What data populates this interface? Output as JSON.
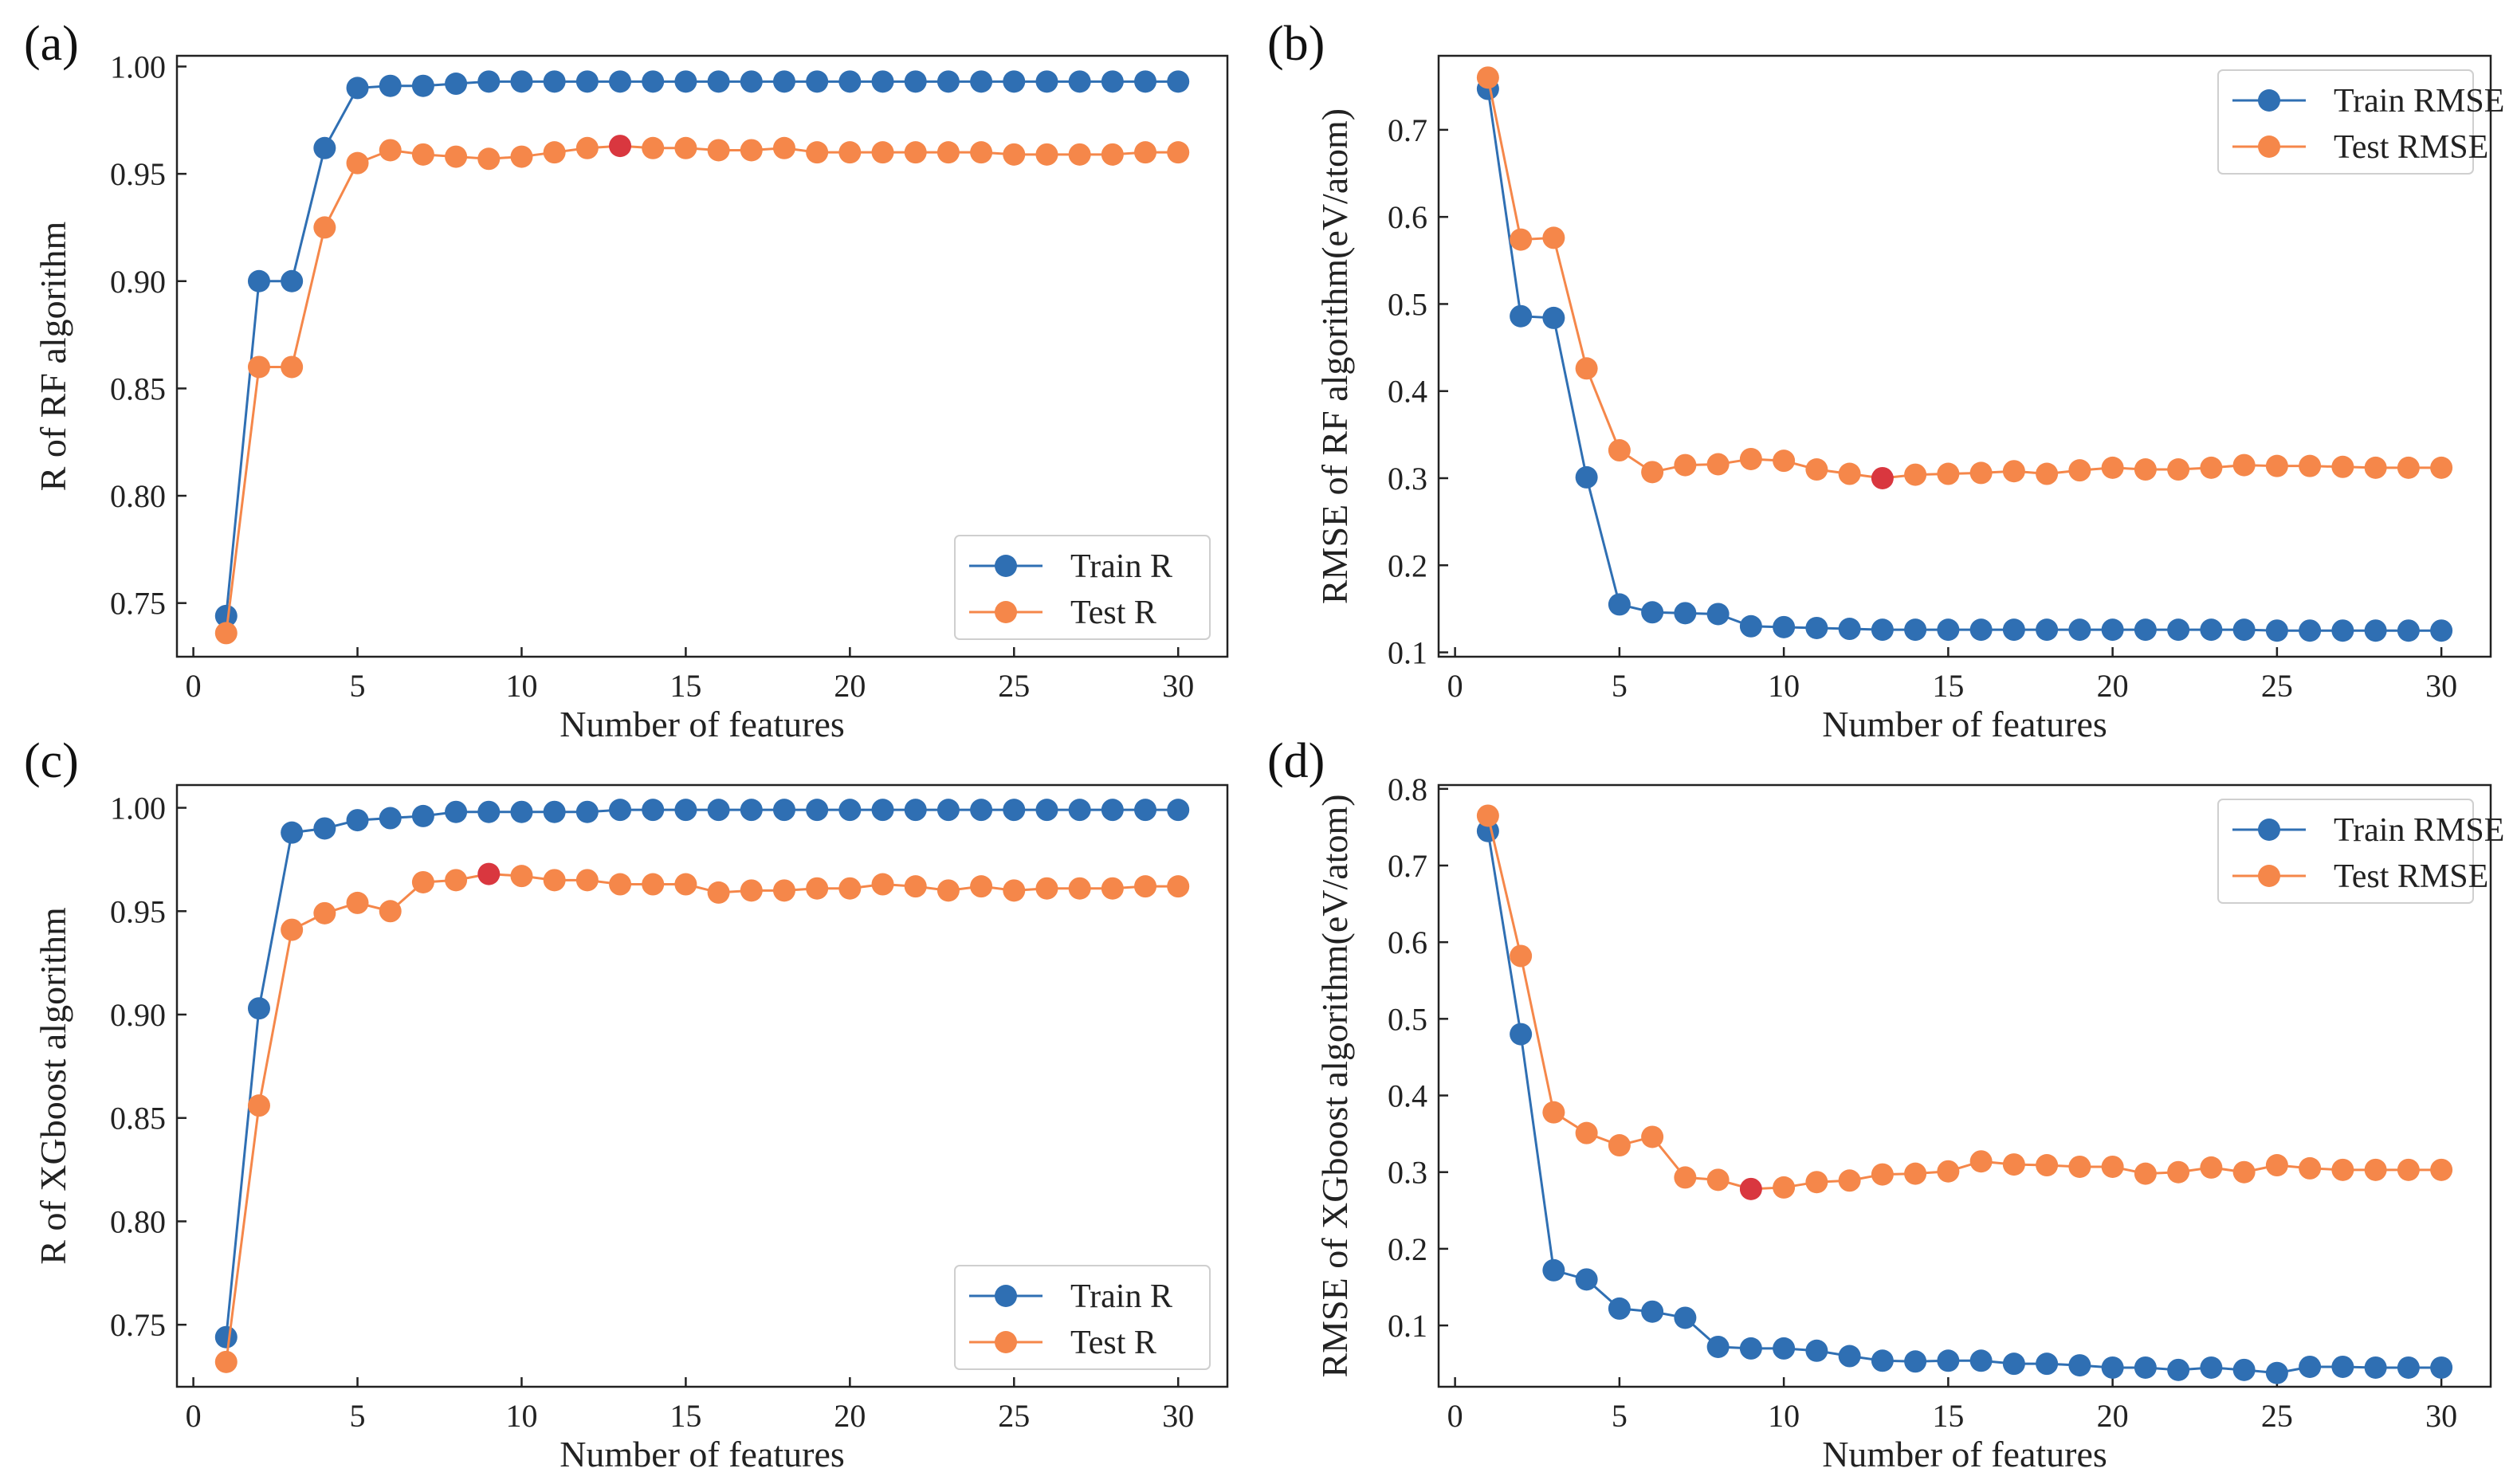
{
  "colors": {
    "train": "#2f6fb3",
    "test": "#f5874a",
    "best": "#d9373f",
    "frame": "#222222"
  },
  "chart_data": [
    {
      "panel": "(a)",
      "type": "line",
      "xlabel": "Number of features",
      "ylabel": "R of RF algorithm",
      "xlim": [
        -0.5,
        31.5
      ],
      "ylim": [
        0.725,
        1.005
      ],
      "xticks": [
        0,
        5,
        10,
        15,
        20,
        25,
        30
      ],
      "yticks": [
        0.75,
        0.8,
        0.85,
        0.9,
        0.95,
        1.0
      ],
      "ytick_format": 2,
      "legend_position": "lower-right",
      "x": [
        1,
        2,
        3,
        4,
        5,
        6,
        7,
        8,
        9,
        10,
        11,
        12,
        13,
        14,
        15,
        16,
        17,
        18,
        19,
        20,
        21,
        22,
        23,
        24,
        25,
        26,
        27,
        28,
        29,
        30
      ],
      "series": [
        {
          "name": "Train R",
          "key": "train",
          "values": [
            0.744,
            0.9,
            0.9,
            0.962,
            0.99,
            0.991,
            0.991,
            0.992,
            0.993,
            0.993,
            0.993,
            0.993,
            0.993,
            0.993,
            0.993,
            0.993,
            0.993,
            0.993,
            0.993,
            0.993,
            0.993,
            0.993,
            0.993,
            0.993,
            0.993,
            0.993,
            0.993,
            0.993,
            0.993,
            0.993
          ]
        },
        {
          "name": "Test R",
          "key": "test",
          "values": [
            0.736,
            0.86,
            0.86,
            0.925,
            0.955,
            0.961,
            0.959,
            0.958,
            0.957,
            0.958,
            0.96,
            0.962,
            0.963,
            0.962,
            0.962,
            0.961,
            0.961,
            0.962,
            0.96,
            0.96,
            0.96,
            0.96,
            0.96,
            0.96,
            0.959,
            0.959,
            0.959,
            0.959,
            0.96,
            0.96
          ]
        }
      ],
      "best_point": {
        "series": "test",
        "x": 13,
        "y": 0.963
      }
    },
    {
      "panel": "(b)",
      "type": "line",
      "xlabel": "Number of features",
      "ylabel": "RMSE of RF algorithm(eV/atom)",
      "xlim": [
        -0.5,
        31.5
      ],
      "ylim": [
        0.095,
        0.785
      ],
      "xticks": [
        0,
        5,
        10,
        15,
        20,
        25,
        30
      ],
      "yticks": [
        0.1,
        0.2,
        0.3,
        0.4,
        0.5,
        0.6,
        0.7
      ],
      "ytick_format": 1,
      "legend_position": "upper-right",
      "x": [
        1,
        2,
        3,
        4,
        5,
        6,
        7,
        8,
        9,
        10,
        11,
        12,
        13,
        14,
        15,
        16,
        17,
        18,
        19,
        20,
        21,
        22,
        23,
        24,
        25,
        26,
        27,
        28,
        29,
        30
      ],
      "series": [
        {
          "name": "Train RMSE",
          "key": "train",
          "values": [
            0.747,
            0.486,
            0.484,
            0.301,
            0.155,
            0.146,
            0.145,
            0.144,
            0.13,
            0.129,
            0.128,
            0.127,
            0.126,
            0.126,
            0.126,
            0.126,
            0.126,
            0.126,
            0.126,
            0.126,
            0.126,
            0.126,
            0.126,
            0.126,
            0.125,
            0.125,
            0.125,
            0.125,
            0.125,
            0.125
          ]
        },
        {
          "name": "Test RMSE",
          "key": "test",
          "values": [
            0.76,
            0.574,
            0.576,
            0.426,
            0.332,
            0.307,
            0.315,
            0.316,
            0.322,
            0.32,
            0.31,
            0.305,
            0.3,
            0.304,
            0.305,
            0.306,
            0.308,
            0.305,
            0.309,
            0.312,
            0.31,
            0.31,
            0.312,
            0.315,
            0.314,
            0.314,
            0.313,
            0.312,
            0.312,
            0.312
          ]
        }
      ],
      "best_point": {
        "series": "test",
        "x": 13,
        "y": 0.3
      }
    },
    {
      "panel": "(c)",
      "type": "line",
      "xlabel": "Number of features",
      "ylabel": "R of XGboost algorithm",
      "xlim": [
        -0.5,
        31.5
      ],
      "ylim": [
        0.72,
        1.011
      ],
      "xticks": [
        0,
        5,
        10,
        15,
        20,
        25,
        30
      ],
      "yticks": [
        0.75,
        0.8,
        0.85,
        0.9,
        0.95,
        1.0
      ],
      "ytick_format": 2,
      "legend_position": "lower-right",
      "x": [
        1,
        2,
        3,
        4,
        5,
        6,
        7,
        8,
        9,
        10,
        11,
        12,
        13,
        14,
        15,
        16,
        17,
        18,
        19,
        20,
        21,
        22,
        23,
        24,
        25,
        26,
        27,
        28,
        29,
        30
      ],
      "series": [
        {
          "name": "Train R",
          "key": "train",
          "values": [
            0.744,
            0.903,
            0.988,
            0.99,
            0.994,
            0.995,
            0.996,
            0.998,
            0.998,
            0.998,
            0.998,
            0.998,
            0.999,
            0.999,
            0.999,
            0.999,
            0.999,
            0.999,
            0.999,
            0.999,
            0.999,
            0.999,
            0.999,
            0.999,
            0.999,
            0.999,
            0.999,
            0.999,
            0.999,
            0.999
          ]
        },
        {
          "name": "Test R",
          "key": "test",
          "values": [
            0.732,
            0.856,
            0.941,
            0.949,
            0.954,
            0.95,
            0.964,
            0.965,
            0.968,
            0.967,
            0.965,
            0.965,
            0.963,
            0.963,
            0.963,
            0.959,
            0.96,
            0.96,
            0.961,
            0.961,
            0.963,
            0.962,
            0.96,
            0.962,
            0.96,
            0.961,
            0.961,
            0.961,
            0.962,
            0.962
          ]
        }
      ],
      "best_point": {
        "series": "test",
        "x": 9,
        "y": 0.968
      }
    },
    {
      "panel": "(d)",
      "type": "line",
      "xlabel": "Number of features",
      "ylabel": "RMSE of XGboost algorithm(eV/atom)",
      "xlim": [
        -0.5,
        31.5
      ],
      "ylim": [
        0.02,
        0.805
      ],
      "xticks": [
        0,
        5,
        10,
        15,
        20,
        25,
        30
      ],
      "yticks": [
        0.1,
        0.2,
        0.3,
        0.4,
        0.5,
        0.6,
        0.7,
        0.8
      ],
      "ytick_format": 1,
      "legend_position": "upper-right",
      "x": [
        1,
        2,
        3,
        4,
        5,
        6,
        7,
        8,
        9,
        10,
        11,
        12,
        13,
        14,
        15,
        16,
        17,
        18,
        19,
        20,
        21,
        22,
        23,
        24,
        25,
        26,
        27,
        28,
        29,
        30
      ],
      "series": [
        {
          "name": "Train RMSE",
          "key": "train",
          "values": [
            0.745,
            0.48,
            0.172,
            0.16,
            0.122,
            0.118,
            0.11,
            0.072,
            0.07,
            0.07,
            0.067,
            0.06,
            0.054,
            0.053,
            0.054,
            0.054,
            0.05,
            0.05,
            0.048,
            0.045,
            0.045,
            0.042,
            0.045,
            0.042,
            0.038,
            0.046,
            0.046,
            0.045,
            0.045,
            0.045
          ]
        },
        {
          "name": "Test RMSE",
          "key": "test",
          "values": [
            0.765,
            0.582,
            0.378,
            0.351,
            0.335,
            0.346,
            0.293,
            0.29,
            0.278,
            0.28,
            0.287,
            0.289,
            0.297,
            0.298,
            0.301,
            0.314,
            0.31,
            0.309,
            0.307,
            0.307,
            0.298,
            0.3,
            0.306,
            0.3,
            0.309,
            0.305,
            0.303,
            0.303,
            0.303,
            0.303
          ]
        }
      ],
      "best_point": {
        "series": "test",
        "x": 9,
        "y": 0.278
      }
    }
  ]
}
